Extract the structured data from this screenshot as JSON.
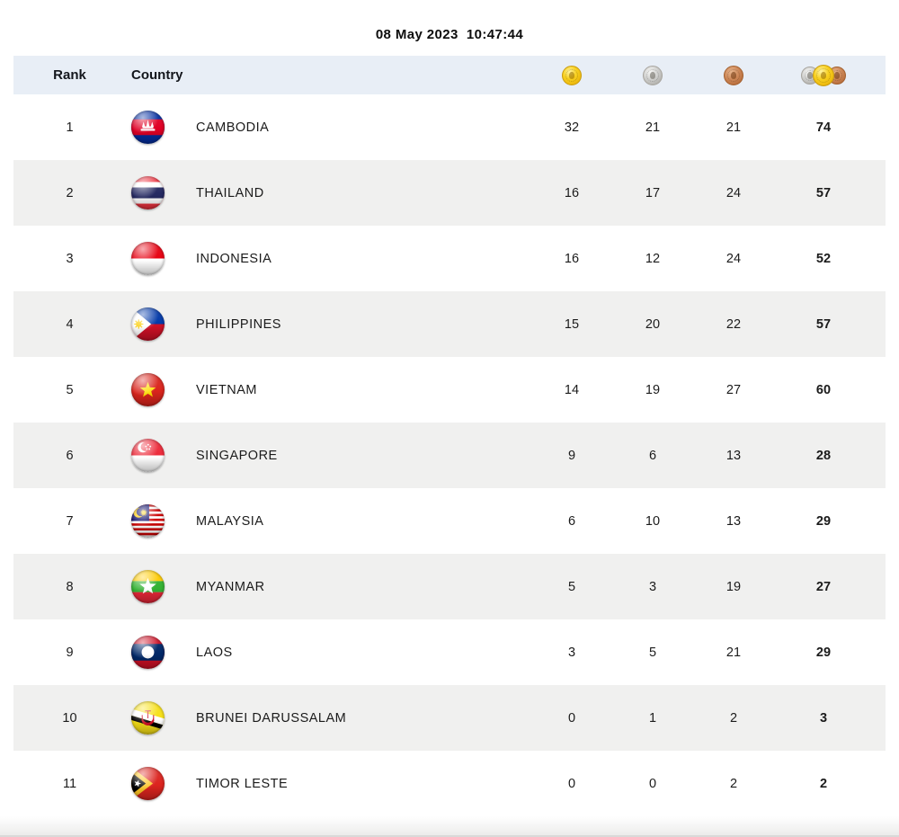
{
  "header": {
    "datetime": "08 May 2023  10:47:44"
  },
  "table": {
    "columns": {
      "rank": "Rank",
      "country": "Country"
    },
    "icons": {
      "gold": "gold-medal-icon",
      "silver": "silver-medal-icon",
      "bronze": "bronze-medal-icon",
      "total": "total-medals-icon"
    },
    "rows": [
      {
        "rank": 1,
        "country": "CAMBODIA",
        "flag": "kh",
        "gold": 32,
        "silver": 21,
        "bronze": 21,
        "total": 74
      },
      {
        "rank": 2,
        "country": "THAILAND",
        "flag": "th",
        "gold": 16,
        "silver": 17,
        "bronze": 24,
        "total": 57
      },
      {
        "rank": 3,
        "country": "INDONESIA",
        "flag": "id",
        "gold": 16,
        "silver": 12,
        "bronze": 24,
        "total": 52
      },
      {
        "rank": 4,
        "country": "PHILIPPINES",
        "flag": "ph",
        "gold": 15,
        "silver": 20,
        "bronze": 22,
        "total": 57
      },
      {
        "rank": 5,
        "country": "VIETNAM",
        "flag": "vn",
        "gold": 14,
        "silver": 19,
        "bronze": 27,
        "total": 60
      },
      {
        "rank": 6,
        "country": "SINGAPORE",
        "flag": "sg",
        "gold": 9,
        "silver": 6,
        "bronze": 13,
        "total": 28
      },
      {
        "rank": 7,
        "country": "MALAYSIA",
        "flag": "my",
        "gold": 6,
        "silver": 10,
        "bronze": 13,
        "total": 29
      },
      {
        "rank": 8,
        "country": "MYANMAR",
        "flag": "mm",
        "gold": 5,
        "silver": 3,
        "bronze": 19,
        "total": 27
      },
      {
        "rank": 9,
        "country": "LAOS",
        "flag": "la",
        "gold": 3,
        "silver": 5,
        "bronze": 21,
        "total": 29
      },
      {
        "rank": 10,
        "country": "BRUNEI DARUSSALAM",
        "flag": "bn",
        "gold": 0,
        "silver": 1,
        "bronze": 2,
        "total": 3
      },
      {
        "rank": 11,
        "country": "TIMOR LESTE",
        "flag": "tl",
        "gold": 0,
        "silver": 0,
        "bronze": 2,
        "total": 2
      }
    ]
  },
  "colors": {
    "header_bg": "#e8eef6",
    "row_alt_bg": "#f0f0ef",
    "text": "#1b1b1b",
    "gold": "#f3c515",
    "silver": "#bdbcb8",
    "bronze": "#c07a47"
  }
}
